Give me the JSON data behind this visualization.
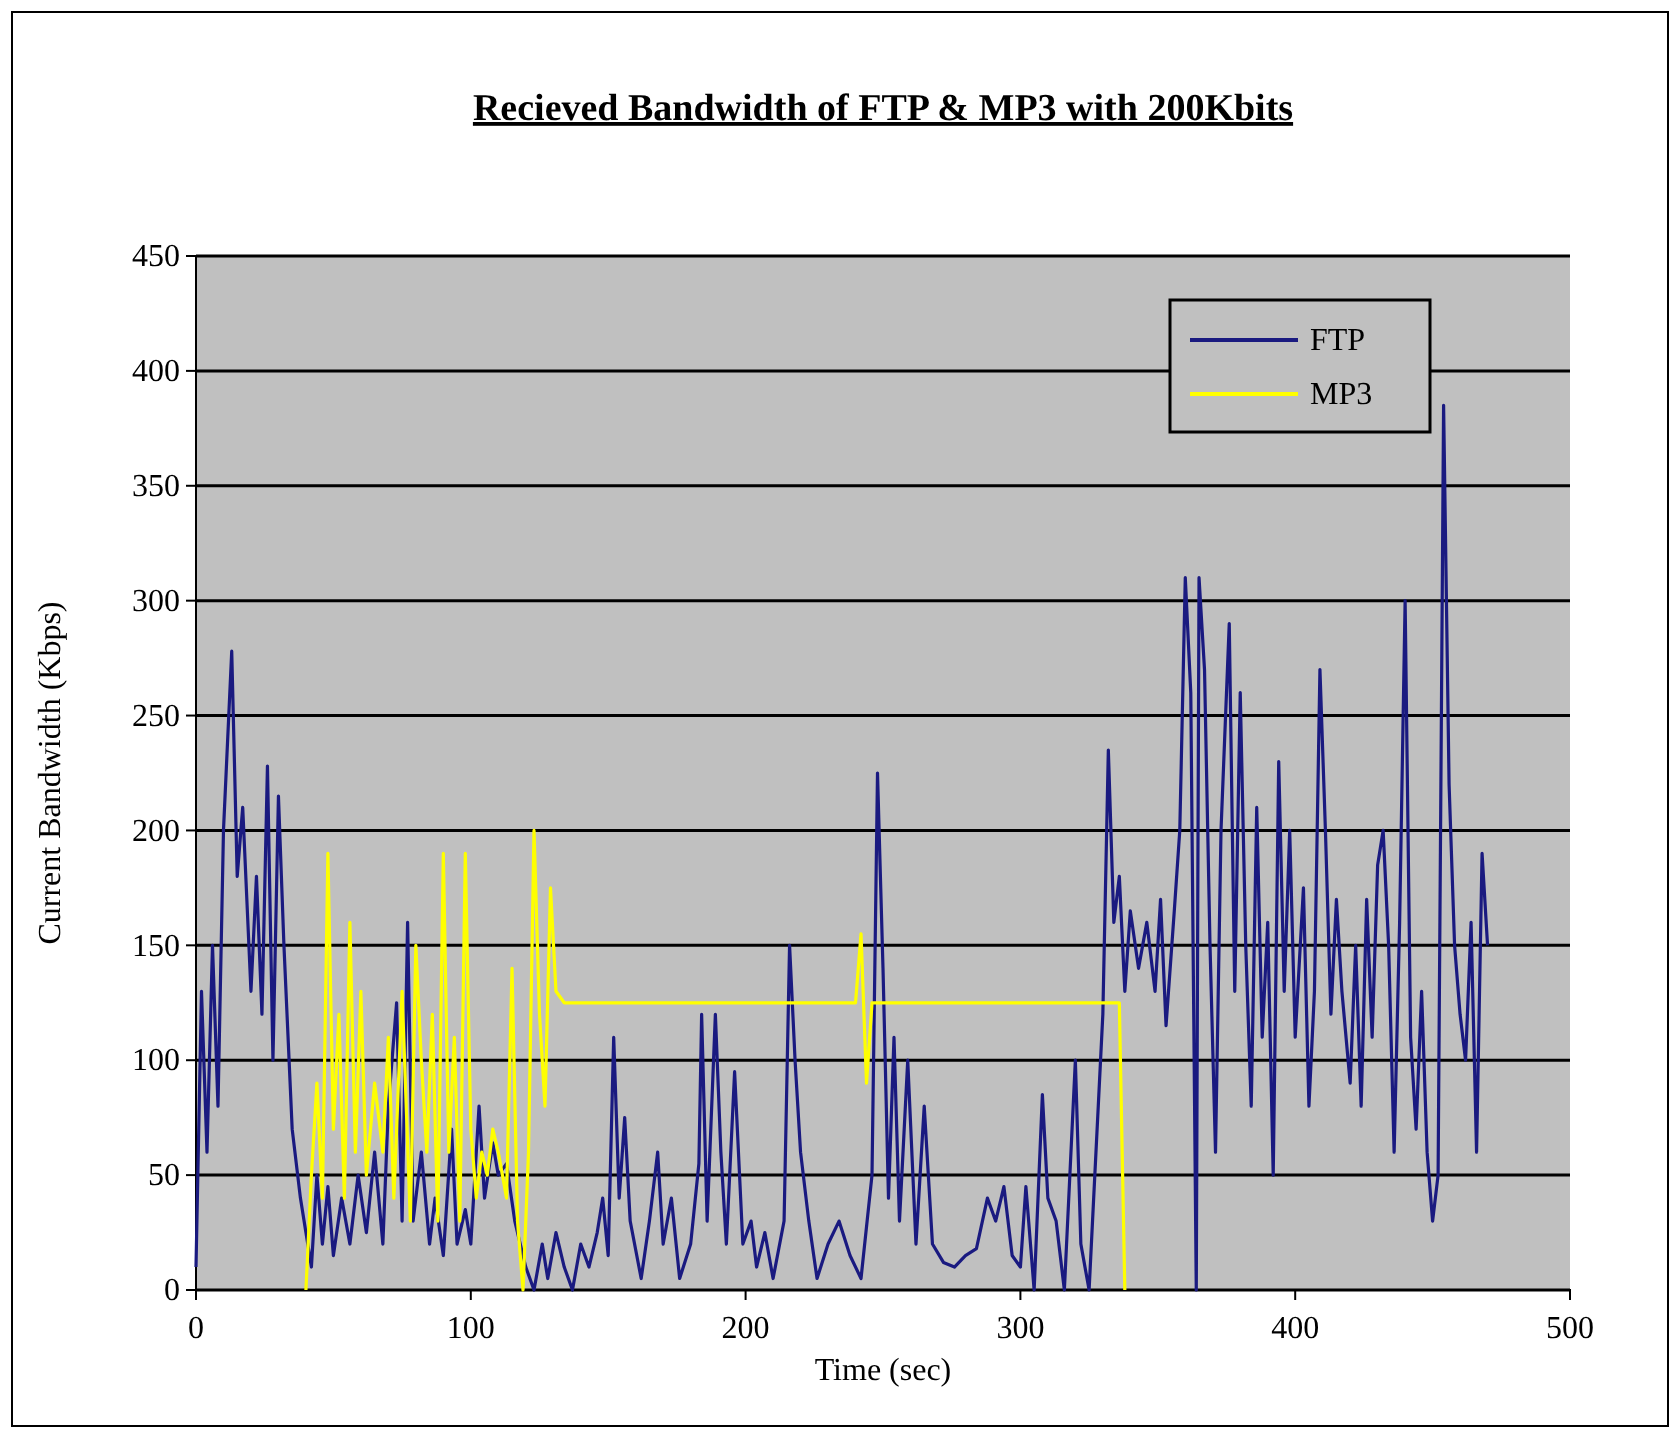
{
  "chart_data": {
    "type": "line",
    "title": "Recieved Bandwidth of FTP & MP3 with 200Kbits",
    "xlabel": "Time (sec)",
    "ylabel": "Current Bandwidth (Kbps)",
    "xlim": [
      0,
      500
    ],
    "xticks": [
      0,
      100,
      200,
      300,
      400,
      500
    ],
    "ylim": [
      0,
      450
    ],
    "yticks": [
      0,
      50,
      100,
      150,
      200,
      250,
      300,
      350,
      400,
      450
    ],
    "grid": "y",
    "legend": "top right",
    "marker": "none",
    "line_style": "solid",
    "series": [
      {
        "name": "FTP",
        "color": "#1a1a80",
        "x": [
          0,
          2,
          4,
          6,
          8,
          10,
          13,
          15,
          17,
          20,
          22,
          24,
          26,
          28,
          30,
          32,
          35,
          38,
          40,
          42,
          44,
          46,
          48,
          50,
          53,
          56,
          59,
          62,
          65,
          68,
          70,
          73,
          75,
          77,
          79,
          82,
          85,
          87,
          90,
          93,
          95,
          98,
          100,
          103,
          105,
          108,
          110,
          113,
          116,
          120,
          123,
          126,
          128,
          131,
          134,
          137,
          140,
          143,
          146,
          148,
          150,
          152,
          154,
          156,
          158,
          162,
          165,
          168,
          170,
          173,
          176,
          180,
          183,
          184,
          186,
          189,
          191,
          193,
          196,
          199,
          202,
          204,
          207,
          210,
          214,
          216,
          218,
          220,
          223,
          226,
          230,
          234,
          238,
          242,
          246,
          248,
          250,
          252,
          254,
          256,
          259,
          262,
          265,
          268,
          272,
          276,
          280,
          284,
          288,
          291,
          294,
          297,
          300,
          302,
          305,
          308,
          310,
          313,
          316,
          320,
          322,
          325,
          330,
          332,
          334,
          336,
          338,
          340,
          343,
          346,
          349,
          351,
          353,
          356,
          358,
          360,
          362,
          364,
          365,
          367,
          369,
          371,
          373,
          376,
          378,
          380,
          382,
          384,
          386,
          388,
          390,
          392,
          394,
          396,
          398,
          400,
          403,
          405,
          407,
          409,
          411,
          413,
          415,
          417,
          420,
          422,
          424,
          426,
          428,
          430,
          432,
          434,
          436,
          438,
          440,
          442,
          444,
          446,
          448,
          450,
          452,
          454,
          456,
          458,
          460,
          462,
          464,
          466,
          468,
          470
        ],
        "values": [
          10,
          130,
          60,
          150,
          80,
          200,
          278,
          180,
          210,
          130,
          180,
          120,
          228,
          100,
          215,
          150,
          70,
          40,
          25,
          10,
          50,
          20,
          45,
          15,
          40,
          20,
          50,
          25,
          60,
          20,
          80,
          125,
          30,
          160,
          30,
          60,
          20,
          40,
          15,
          70,
          20,
          35,
          20,
          80,
          40,
          64,
          50,
          55,
          30,
          10,
          0,
          20,
          5,
          25,
          10,
          0,
          20,
          10,
          25,
          40,
          15,
          110,
          40,
          75,
          30,
          5,
          30,
          60,
          20,
          40,
          5,
          20,
          55,
          120,
          30,
          120,
          60,
          20,
          95,
          20,
          30,
          10,
          25,
          5,
          30,
          150,
          100,
          60,
          30,
          5,
          20,
          30,
          15,
          5,
          50,
          225,
          140,
          40,
          110,
          30,
          100,
          20,
          80,
          20,
          12,
          10,
          15,
          18,
          40,
          30,
          45,
          15,
          10,
          45,
          0,
          85,
          40,
          30,
          0,
          100,
          20,
          0,
          120,
          235,
          160,
          180,
          130,
          165,
          140,
          160,
          130,
          170,
          115,
          165,
          200,
          310,
          260,
          0,
          310,
          270,
          150,
          60,
          200,
          290,
          130,
          260,
          150,
          80,
          210,
          110,
          160,
          50,
          230,
          130,
          200,
          110,
          175,
          80,
          130,
          270,
          200,
          120,
          170,
          130,
          90,
          150,
          80,
          170,
          110,
          185,
          200,
          150,
          60,
          160,
          300,
          110,
          70,
          130,
          60,
          30,
          50,
          385,
          220,
          150,
          120,
          100,
          160,
          60,
          190,
          150
        ]
      },
      {
        "name": "MP3",
        "color": "#ffff00",
        "x": [
          40,
          42,
          44,
          46,
          48,
          50,
          52,
          54,
          56,
          58,
          60,
          62,
          65,
          68,
          70,
          72,
          75,
          78,
          80,
          82,
          84,
          86,
          88,
          90,
          92,
          94,
          96,
          98,
          100,
          102,
          104,
          106,
          108,
          110,
          113,
          115,
          117,
          119,
          121,
          123,
          125,
          127,
          129,
          131,
          134,
          140,
          200,
          240,
          242,
          244,
          246,
          300,
          336,
          338
        ],
        "values": [
          0,
          50,
          90,
          40,
          190,
          70,
          120,
          40,
          160,
          60,
          130,
          50,
          90,
          60,
          110,
          40,
          130,
          30,
          150,
          100,
          60,
          120,
          30,
          190,
          60,
          110,
          30,
          190,
          70,
          40,
          60,
          50,
          70,
          60,
          40,
          140,
          30,
          0,
          60,
          200,
          120,
          80,
          175,
          130,
          125,
          125,
          125,
          125,
          155,
          90,
          125,
          125,
          125,
          0
        ]
      }
    ]
  }
}
